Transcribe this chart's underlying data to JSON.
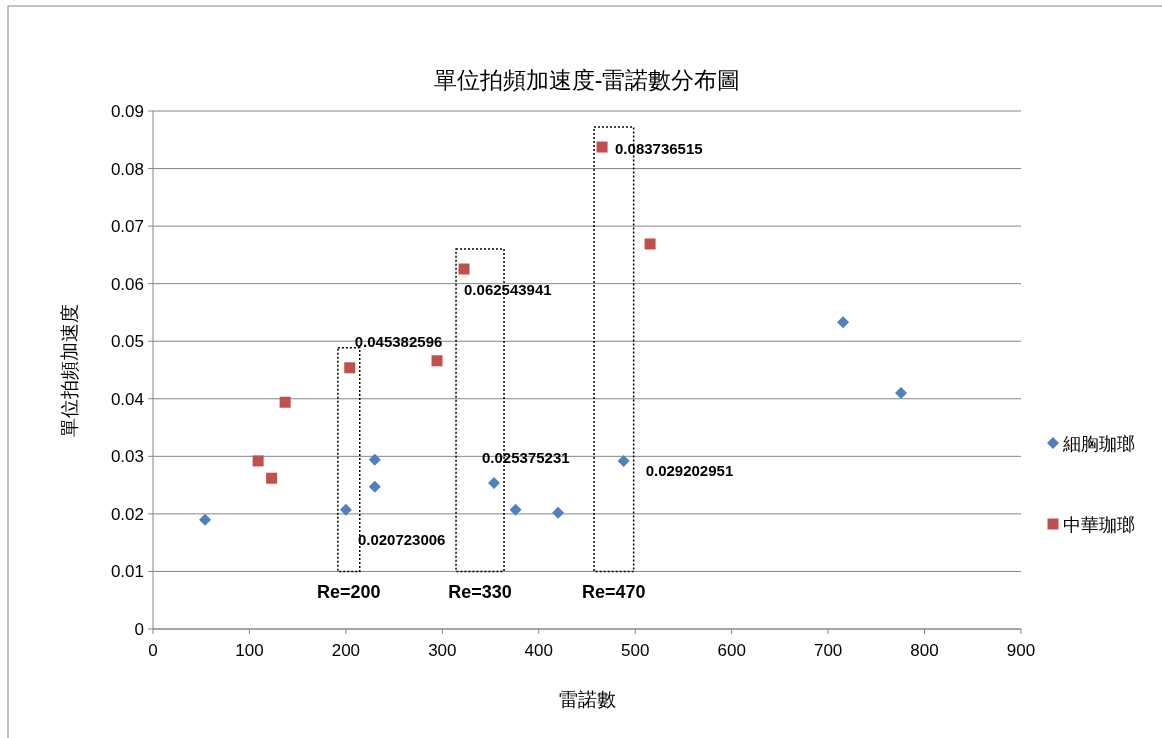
{
  "chart_data": {
    "type": "scatter",
    "title": "單位拍頻加速度-雷諾數分布圖",
    "xlabel": "雷諾數",
    "ylabel": "單位拍頻加速度",
    "xlim": [
      0,
      900
    ],
    "xticks": [
      0,
      100,
      200,
      300,
      400,
      500,
      600,
      700,
      800,
      900
    ],
    "ylim": [
      0,
      0.09
    ],
    "yticks": [
      0,
      0.01,
      0.02,
      0.03,
      0.04,
      0.05,
      0.06,
      0.07,
      0.08,
      0.09
    ],
    "grid": "y",
    "legend": "right",
    "series": [
      {
        "name": "細胸珈瑯",
        "color": "#4f81bd",
        "marker": "diamond",
        "x": [
          54,
          200,
          230,
          230,
          353.6,
          376,
          420,
          488,
          715.5,
          775.6
        ],
        "values": [
          0.019,
          0.020723006,
          0.0294,
          0.0247,
          0.025375231,
          0.0207,
          0.0202,
          0.029202951,
          0.0533,
          0.041
        ]
      },
      {
        "name": "中華珈瑯",
        "color": "#c0504d",
        "marker": "square",
        "x": [
          109,
          123,
          137,
          204,
          294.5,
          322.5,
          465.6,
          515.4
        ],
        "values": [
          0.0292,
          0.0262,
          0.0394,
          0.045382596,
          0.0466,
          0.062543941,
          0.083736515,
          0.0669
        ]
      }
    ],
    "annotations": [
      {
        "text": "0.083736515",
        "x": 465.6,
        "y": 0.083736515
      },
      {
        "text": "0.062543941",
        "x": 322.5,
        "y": 0.062543941
      },
      {
        "text": "0.045382596",
        "x": 204,
        "y": 0.045382596
      },
      {
        "text": "0.020723006",
        "x": 200,
        "y": 0.020723006
      },
      {
        "text": "0.025375231",
        "x": 353.6,
        "y": 0.025375231
      },
      {
        "text": "0.029202951",
        "x": 488,
        "y": 0.029202951
      },
      "Re=200",
      "Re=330",
      "Re=470"
    ]
  }
}
